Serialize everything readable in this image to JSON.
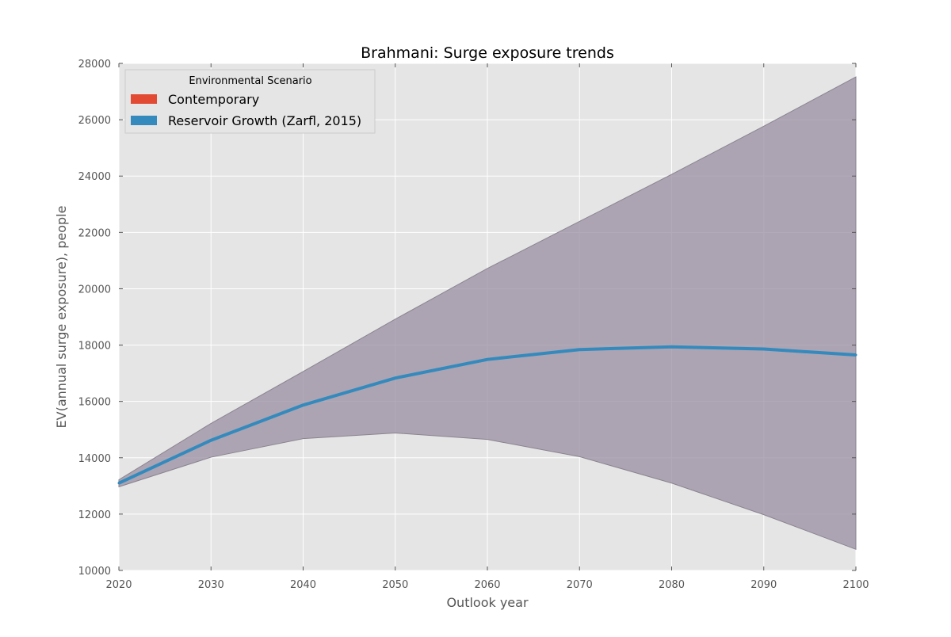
{
  "chart_data": {
    "type": "line",
    "title": "Brahmani: Surge exposure trends",
    "xlabel": "Outlook year",
    "ylabel": "EV(annual surge exposure), people",
    "xlim": [
      2020,
      2100
    ],
    "ylim": [
      10000,
      28000
    ],
    "x_ticks": [
      "2020",
      "2030",
      "2040",
      "2050",
      "2060",
      "2070",
      "2080",
      "2090",
      "2100"
    ],
    "y_ticks": [
      "10000",
      "12000",
      "14000",
      "16000",
      "18000",
      "20000",
      "22000",
      "24000",
      "26000",
      "28000"
    ],
    "x": [
      2020,
      2030,
      2040,
      2050,
      2060,
      2070,
      2080,
      2090,
      2100
    ],
    "grid": true,
    "background_color": "#e5e5e5",
    "legend": {
      "title": "Environmental Scenario",
      "placement": "top-left",
      "entries": [
        {
          "label": "Contemporary",
          "color": "#e24a33"
        },
        {
          "label": "Reservoir Growth (Zarfl, 2015)",
          "color": "#348abd"
        }
      ]
    },
    "series": [
      {
        "name": "Reservoir Growth (Zarfl, 2015)",
        "color": "#348abd",
        "values": [
          13100,
          14620,
          15870,
          16830,
          17490,
          17840,
          17940,
          17860,
          17650
        ]
      }
    ],
    "band": {
      "color": "#988ea0",
      "lower": [
        12970,
        14020,
        14680,
        14880,
        14650,
        14040,
        13100,
        11980,
        10750
      ],
      "upper": [
        13220,
        15220,
        17060,
        18920,
        20720,
        22390,
        24060,
        25770,
        27520
      ]
    }
  }
}
